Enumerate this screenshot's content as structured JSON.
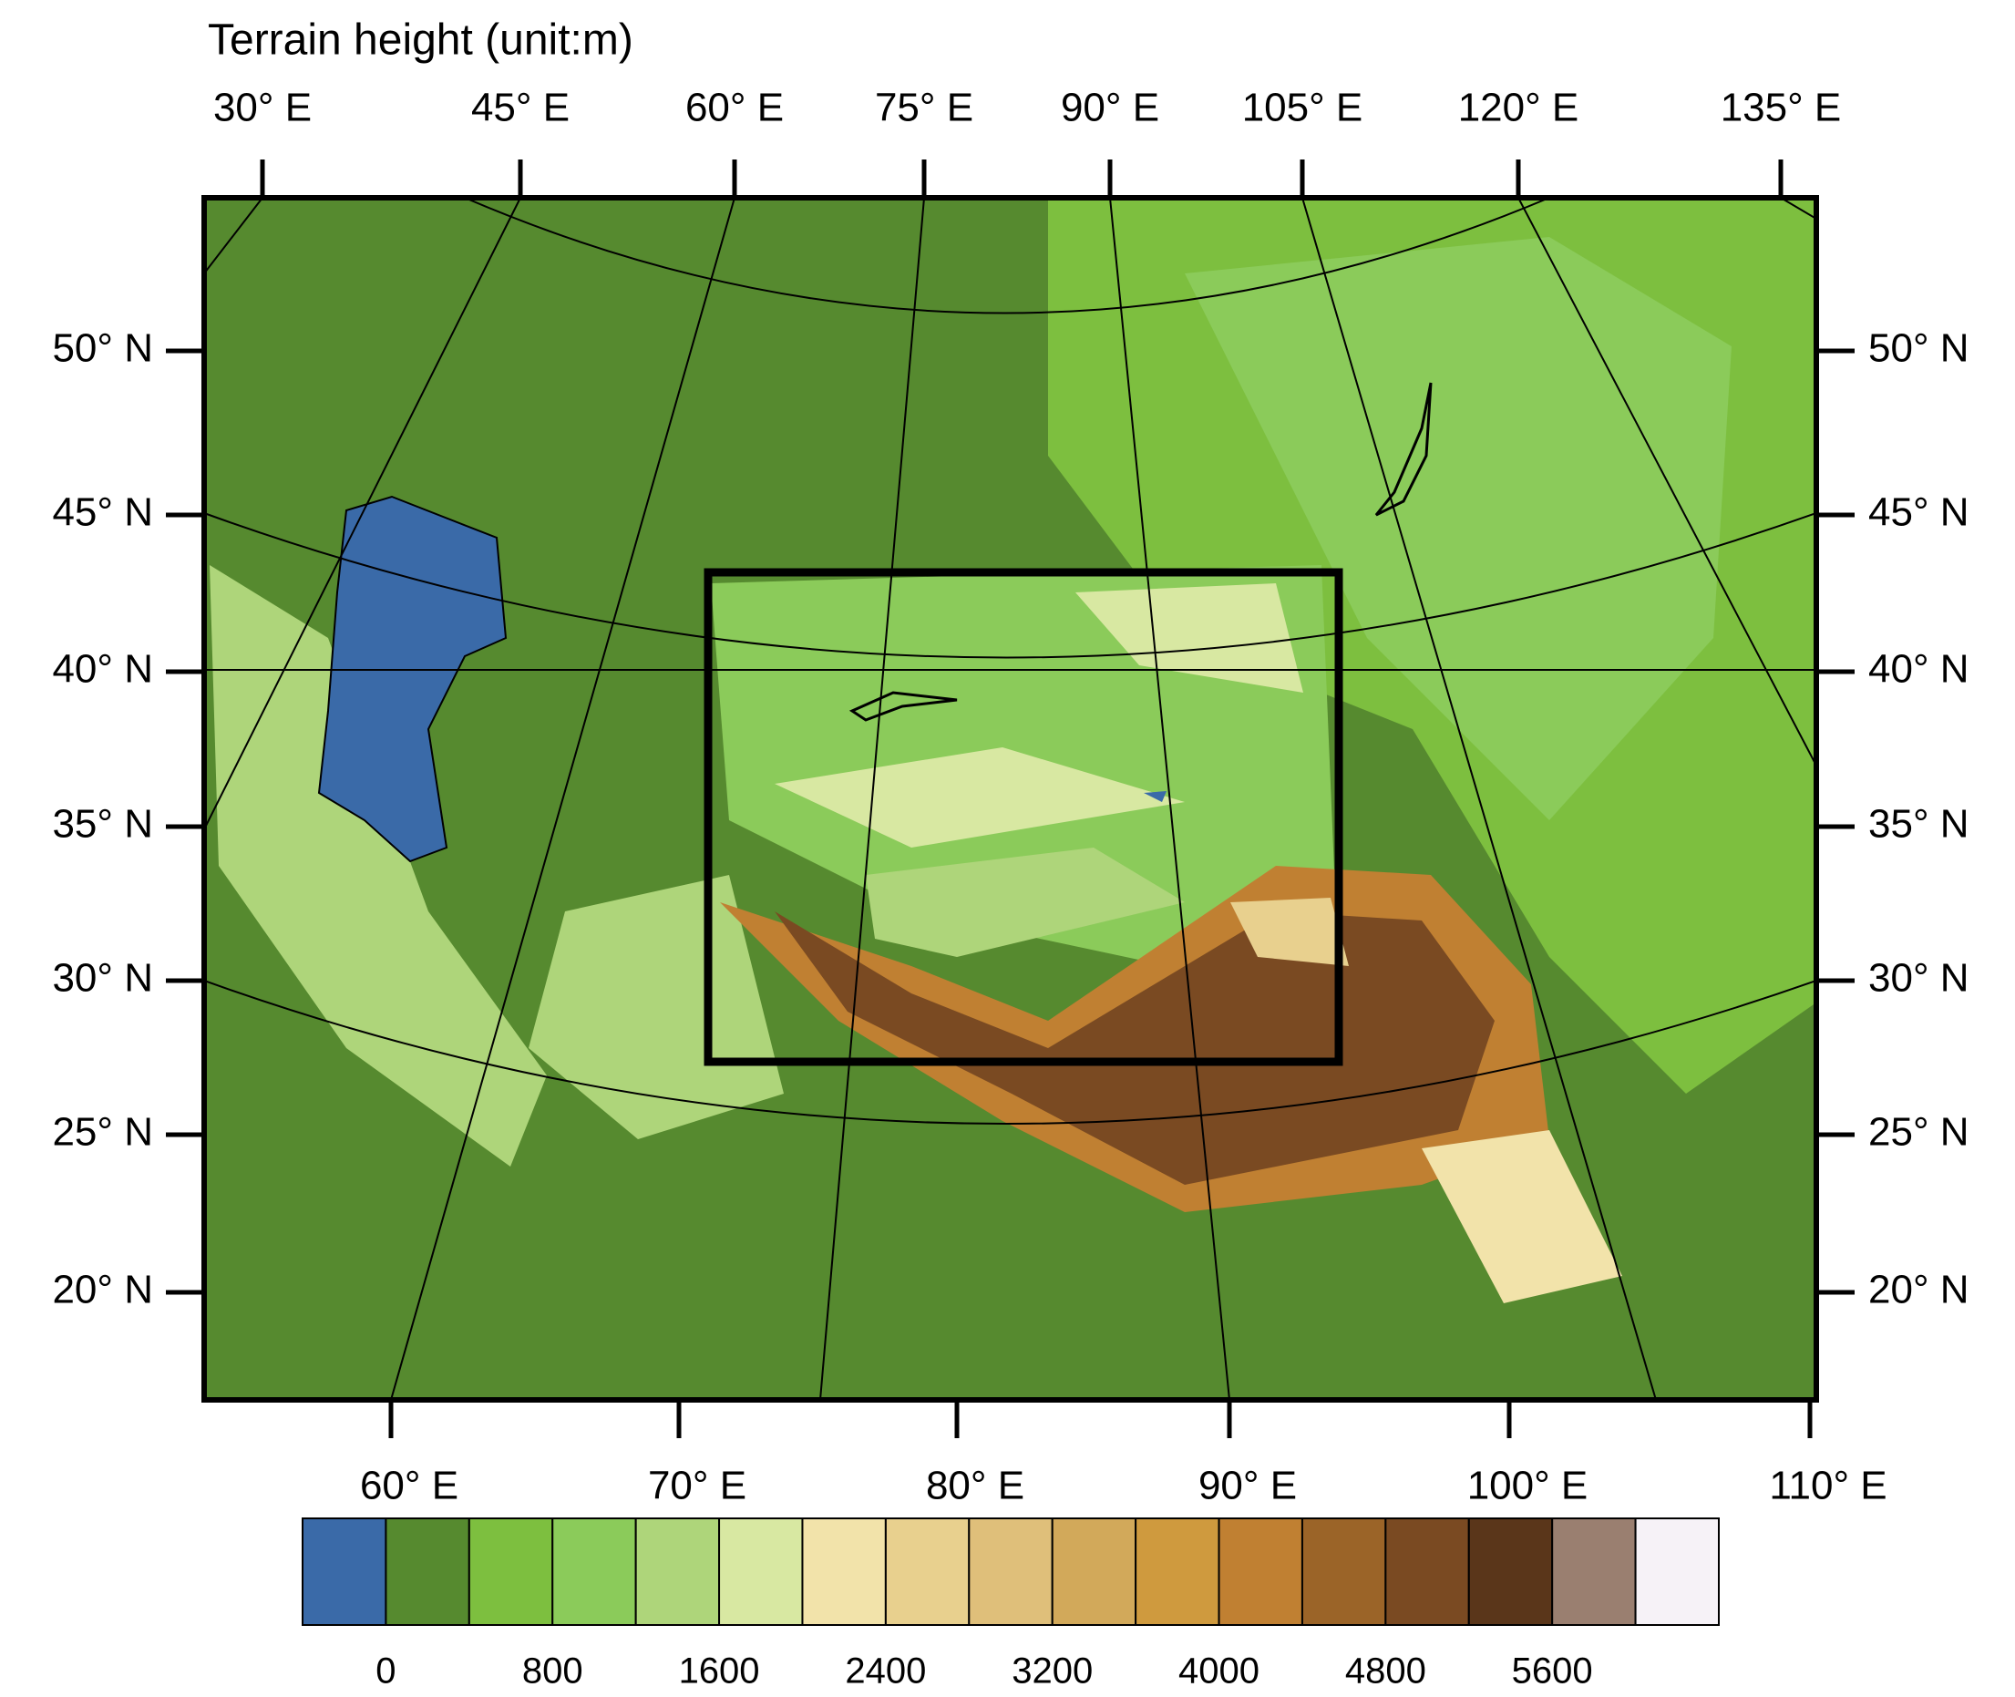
{
  "title": "Terrain height (unit:m)",
  "top_longitude_labels": [
    "30° E",
    "45° E",
    "60° E",
    "75° E",
    "90° E",
    "105° E",
    "120° E",
    "135° E"
  ],
  "latitude_labels": [
    "50° N",
    "45° N",
    "40° N",
    "35° N",
    "30° N",
    "25° N",
    "20° N"
  ],
  "bottom_longitude_labels": [
    "60° E",
    "70° E",
    "80° E",
    "90° E",
    "100° E",
    "110° E"
  ],
  "colorbar": {
    "colors": [
      "#3a6aa8",
      "#568a2f",
      "#7dbf3f",
      "#8bcb5a",
      "#aed57a",
      "#d8e8a2",
      "#f2e3aa",
      "#e8d08e",
      "#dfbf7a",
      "#d2a95a",
      "#cf9a3e",
      "#c08032",
      "#9b6428",
      "#7a4a22",
      "#5a361a",
      "#9a7f70",
      "#f6f2f7"
    ],
    "labels": [
      0,
      800,
      1600,
      2400,
      3200,
      4000,
      4800,
      5600
    ]
  }
}
